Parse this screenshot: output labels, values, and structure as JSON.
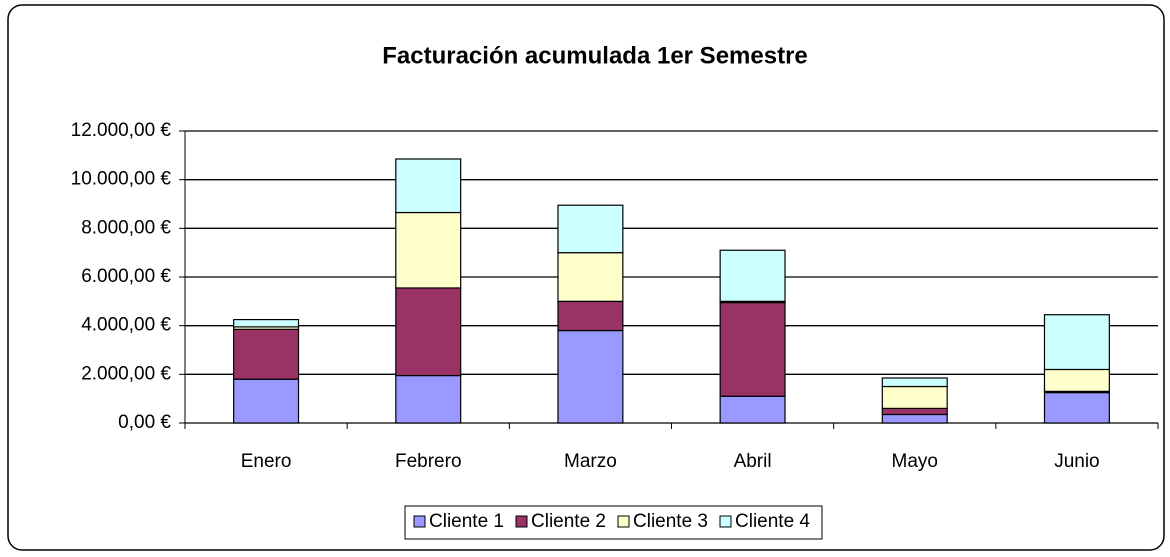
{
  "chart_data": {
    "type": "stacked_bar",
    "title": "Facturación acumulada 1er Semestre",
    "categories": [
      "Enero",
      "Febrero",
      "Marzo",
      "Abril",
      "Mayo",
      "Junio"
    ],
    "series": [
      {
        "name": "Cliente 1",
        "color": "#9999ff",
        "values": [
          1800,
          1950,
          3800,
          1100,
          350,
          1250
        ]
      },
      {
        "name": "Cliente 2",
        "color": "#993366",
        "values": [
          2050,
          3600,
          1200,
          3850,
          250,
          50
        ]
      },
      {
        "name": "Cliente 3",
        "color": "#ffffcc",
        "values": [
          100,
          3100,
          2000,
          50,
          900,
          900
        ]
      },
      {
        "name": "Cliente 4",
        "color": "#ccffff",
        "values": [
          300,
          2200,
          1950,
          2100,
          350,
          2250
        ]
      }
    ],
    "ylim": [
      0,
      12000
    ],
    "yticks": [
      {
        "value": 0,
        "label": "0,00 €"
      },
      {
        "value": 2000,
        "label": "2.000,00 €"
      },
      {
        "value": 4000,
        "label": "4.000,00 €"
      },
      {
        "value": 6000,
        "label": "6.000,00 €"
      },
      {
        "value": 8000,
        "label": "8.000,00 €"
      },
      {
        "value": 10000,
        "label": "10.000,00 €"
      },
      {
        "value": 12000,
        "label": "12.000,00 €"
      }
    ],
    "grid": true,
    "legend": "bottom"
  }
}
